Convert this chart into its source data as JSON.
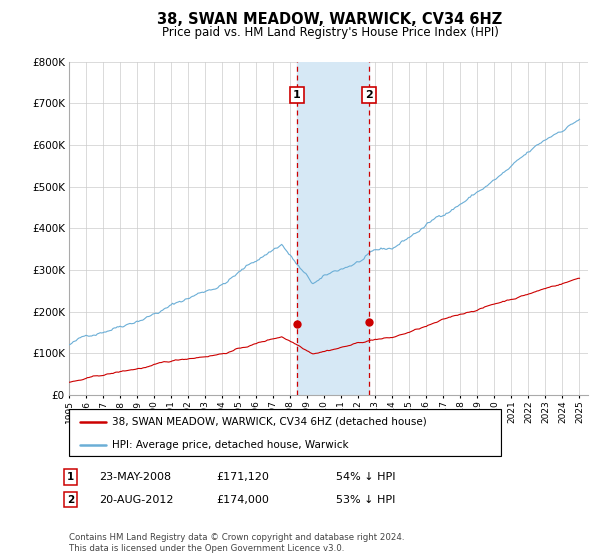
{
  "title": "38, SWAN MEADOW, WARWICK, CV34 6HZ",
  "subtitle": "Price paid vs. HM Land Registry's House Price Index (HPI)",
  "legend_line1": "38, SWAN MEADOW, WARWICK, CV34 6HZ (detached house)",
  "legend_line2": "HPI: Average price, detached house, Warwick",
  "transaction1": {
    "num": "1",
    "date": "23-MAY-2008",
    "price": 171120,
    "label": "54% ↓ HPI"
  },
  "transaction2": {
    "num": "2",
    "date": "20-AUG-2012",
    "price": 174000,
    "label": "53% ↓ HPI"
  },
  "footnote": "Contains HM Land Registry data © Crown copyright and database right 2024.\nThis data is licensed under the Open Government Licence v3.0.",
  "hpi_color": "#6baed6",
  "price_color": "#cc0000",
  "shaded_color": "#d6e8f5",
  "ylim": [
    0,
    800000
  ],
  "yticks": [
    0,
    100000,
    200000,
    300000,
    400000,
    500000,
    600000,
    700000,
    800000
  ],
  "t1_year": 2008.375,
  "t2_year": 2012.625,
  "t1_price": 171120,
  "t2_price": 174000
}
